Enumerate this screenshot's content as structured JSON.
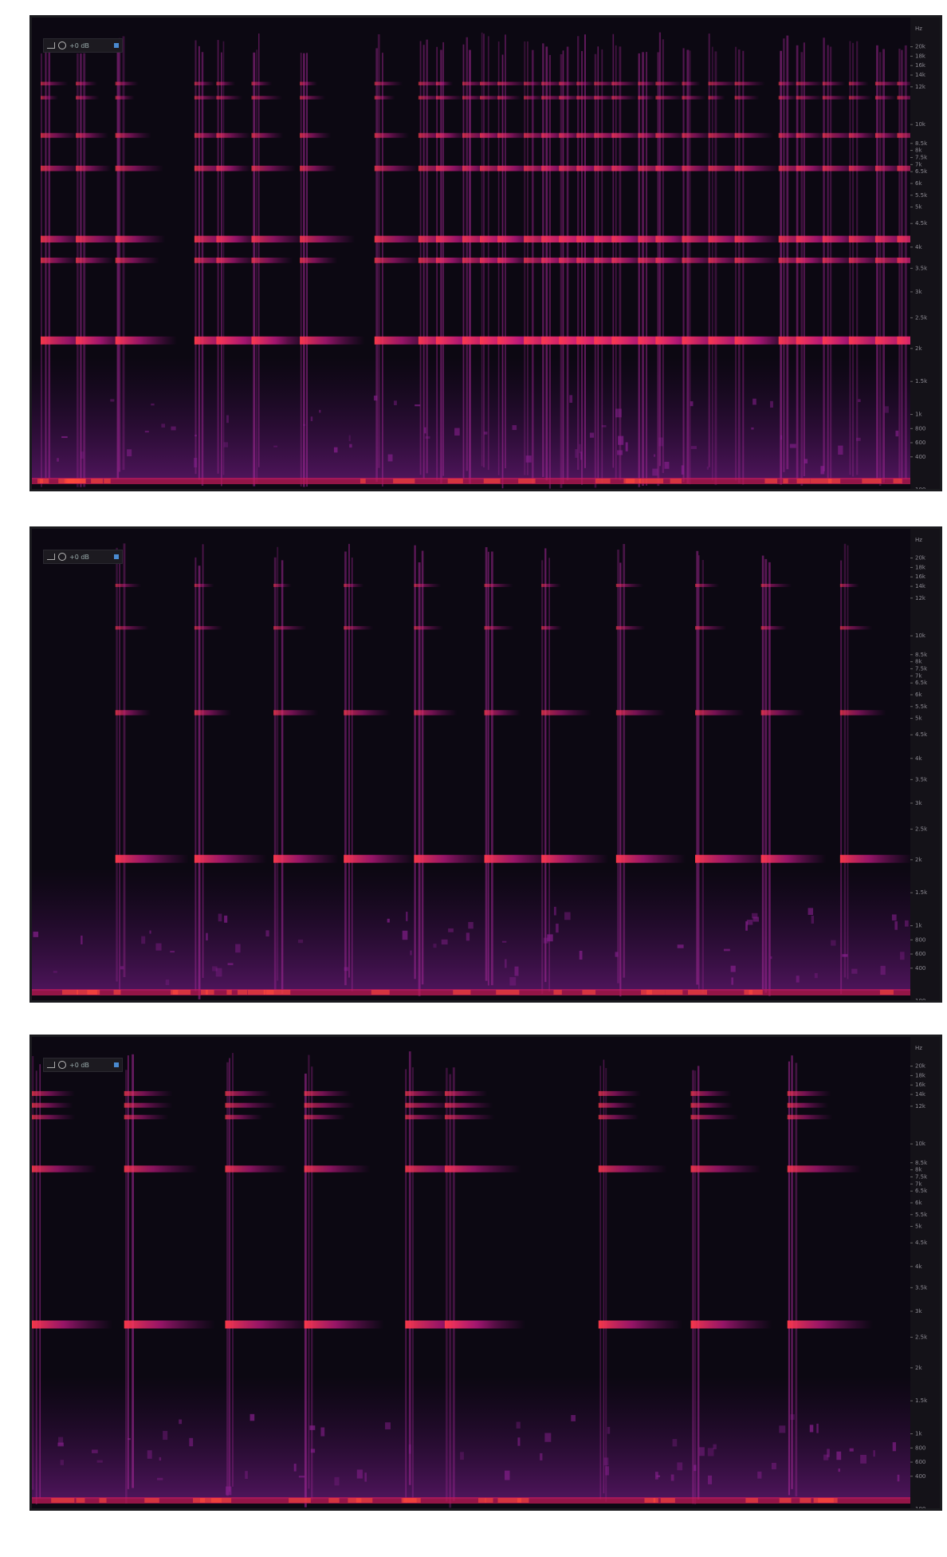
{
  "panels": [
    {
      "level": "+0 dB",
      "unit": "Hz",
      "freq_labels": [
        "20k",
        "18k",
        "16k",
        "14k",
        "12k",
        "10k",
        "8.5k",
        "8k",
        "7.5k",
        "7k",
        "6.5k",
        "6k",
        "5.5k",
        "5k",
        "4.5k",
        "4k",
        "3.5k",
        "3k",
        "2.5k",
        "2k",
        "1.5k",
        "1k",
        "800",
        "600",
        "400",
        "100"
      ]
    },
    {
      "level": "+0 dB",
      "unit": "Hz",
      "freq_labels": [
        "20k",
        "18k",
        "16k",
        "14k",
        "12k",
        "10k",
        "8.5k",
        "8k",
        "7.5k",
        "7k",
        "6.5k",
        "6k",
        "5.5k",
        "5k",
        "4.5k",
        "4k",
        "3.5k",
        "3k",
        "2.5k",
        "2k",
        "1.5k",
        "1k",
        "800",
        "600",
        "400",
        "100"
      ]
    },
    {
      "level": "+0 dB",
      "unit": "Hz",
      "freq_labels": [
        "20k",
        "18k",
        "16k",
        "14k",
        "12k",
        "10k",
        "8.5k",
        "8k",
        "7.5k",
        "7k",
        "6.5k",
        "6k",
        "5.5k",
        "5k",
        "4.5k",
        "4k",
        "3.5k",
        "3k",
        "2.5k",
        "2k",
        "1.5k",
        "1k",
        "800",
        "600",
        "400",
        "100"
      ]
    }
  ]
}
